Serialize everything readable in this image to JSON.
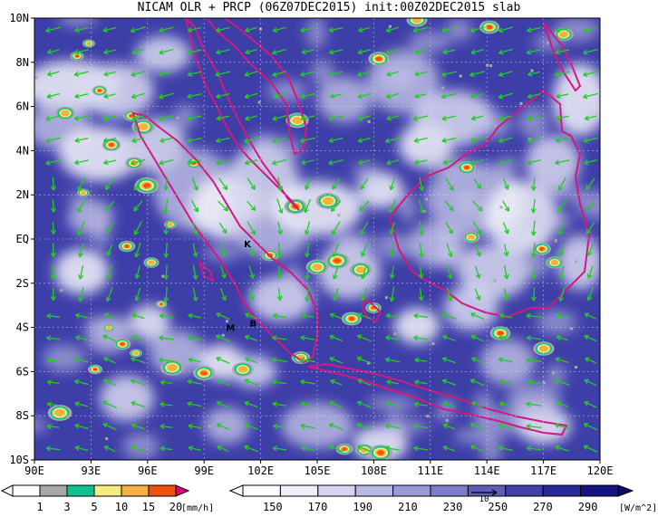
{
  "title": "NICAM OLR + PRCP (06Z07DEC2015) init:00Z02DEC2015 slab",
  "map": {
    "lon_range": [
      90,
      120
    ],
    "lat_range": [
      -10,
      10
    ],
    "lon_ticks": [
      "90E",
      "93E",
      "96E",
      "99E",
      "102E",
      "105E",
      "108E",
      "111E",
      "114E",
      "117E",
      "120E"
    ],
    "lat_ticks": [
      "10N",
      "8N",
      "6N",
      "4N",
      "2N",
      "EQ",
      "2S",
      "4S",
      "6S",
      "8S",
      "10S"
    ],
    "background_color": "#3e3ea8",
    "coast_color": "#d01a80",
    "wind_color": "#22cc22",
    "stations": [
      {
        "label": "K",
        "lon": 101.3,
        "lat": -0.2
      },
      {
        "label": "M",
        "lon": 100.4,
        "lat": -4.0
      },
      {
        "label": "B",
        "lon": 101.6,
        "lat": -3.8
      }
    ]
  },
  "precip_legend": {
    "labels": [
      "1",
      "3",
      "5",
      "10",
      "15",
      "20"
    ],
    "units": "[mm/h]",
    "colors": [
      "#a8a8a8",
      "#10c090",
      "#f4ec80",
      "#f4b040",
      "#f05010",
      "#e0007a"
    ]
  },
  "olr_legend": {
    "labels": [
      "150",
      "170",
      "190",
      "210",
      "230",
      "250",
      "270",
      "290"
    ],
    "units": "[W/m^2]",
    "colors": [
      "#ffffff",
      "#eeeefa",
      "#d4d4f0",
      "#b8b8e4",
      "#9a9ad6",
      "#7c7cc8",
      "#5e5eb8",
      "#4040a8",
      "#282896",
      "#141480"
    ],
    "vector_label": "10"
  }
}
